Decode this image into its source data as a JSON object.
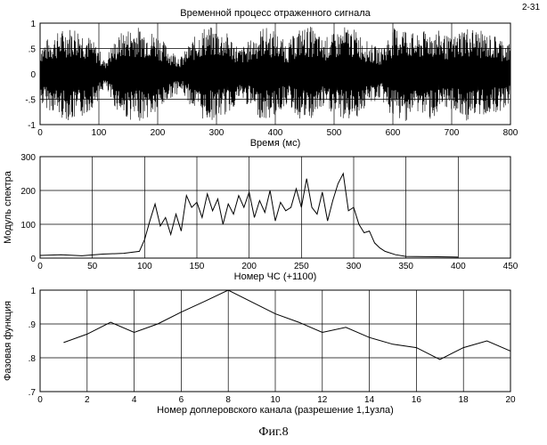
{
  "page_label": "2-31",
  "figure_caption": "Фиг.8",
  "chart_data": [
    {
      "type": "line",
      "title": "Временной процесс отраженного сигнала",
      "xlabel": "Время (мс)",
      "ylabel": "",
      "xlim": [
        0,
        800
      ],
      "ylim": [
        -1,
        1
      ],
      "grid": true,
      "xticks": [
        0,
        100,
        200,
        300,
        400,
        500,
        600,
        700,
        800
      ],
      "yticks": [
        -1,
        -0.5,
        0,
        0.5,
        1
      ],
      "envelope": {
        "t": [
          0,
          20,
          40,
          60,
          80,
          100,
          110,
          120,
          140,
          160,
          180,
          200,
          220,
          240,
          260,
          280,
          300,
          320,
          340,
          360,
          380,
          400,
          420,
          440,
          460,
          480,
          500,
          520,
          540,
          560,
          580,
          600,
          620,
          640,
          660,
          680,
          700,
          720,
          740,
          760,
          780,
          800
        ],
        "amp": [
          0.6,
          0.75,
          0.9,
          0.95,
          0.8,
          0.5,
          0.25,
          0.55,
          0.85,
          0.95,
          0.9,
          0.8,
          0.5,
          0.35,
          0.7,
          0.95,
          0.9,
          0.8,
          0.5,
          0.7,
          0.95,
          0.85,
          0.6,
          0.9,
          0.95,
          0.7,
          0.8,
          0.95,
          0.85,
          0.6,
          0.5,
          0.9,
          0.95,
          0.75,
          0.9,
          0.85,
          0.7,
          0.95,
          0.9,
          0.8,
          0.75,
          0.6
        ]
      }
    },
    {
      "type": "line",
      "title": "",
      "xlabel": "Номер ЧС (+1100)",
      "ylabel": "Модуль спектра",
      "xlim": [
        0,
        450
      ],
      "ylim": [
        0,
        300
      ],
      "grid": true,
      "xticks": [
        0,
        50,
        100,
        150,
        200,
        250,
        300,
        350,
        400,
        450
      ],
      "yticks": [
        0,
        100,
        200,
        300
      ],
      "x": [
        0,
        20,
        40,
        60,
        80,
        95,
        100,
        105,
        110,
        115,
        120,
        125,
        130,
        135,
        140,
        145,
        150,
        155,
        160,
        165,
        170,
        175,
        180,
        185,
        190,
        195,
        200,
        205,
        210,
        215,
        220,
        225,
        230,
        235,
        240,
        245,
        250,
        255,
        260,
        265,
        270,
        275,
        280,
        285,
        290,
        295,
        300,
        305,
        310,
        315,
        320,
        325,
        330,
        340,
        350,
        380,
        400
      ],
      "y": [
        8,
        10,
        7,
        12,
        14,
        20,
        55,
        110,
        160,
        95,
        120,
        70,
        130,
        80,
        185,
        150,
        165,
        120,
        190,
        140,
        175,
        100,
        160,
        130,
        185,
        150,
        195,
        120,
        170,
        135,
        200,
        110,
        165,
        140,
        150,
        205,
        150,
        235,
        150,
        130,
        195,
        110,
        170,
        220,
        250,
        140,
        150,
        100,
        75,
        80,
        45,
        30,
        20,
        10,
        5,
        4,
        3
      ]
    },
    {
      "type": "line",
      "title": "",
      "xlabel": "Номер доплеровского канала (разрешение 1,1узла)",
      "ylabel": "Фазовая функция",
      "xlim": [
        0,
        20
      ],
      "ylim": [
        0.7,
        1
      ],
      "grid": true,
      "xticks": [
        0,
        2,
        4,
        6,
        8,
        10,
        12,
        14,
        16,
        18,
        20
      ],
      "yticks": [
        0.7,
        0.8,
        0.9,
        1
      ],
      "x": [
        1,
        2,
        3,
        4,
        5,
        6,
        7,
        8,
        9,
        10,
        11,
        12,
        13,
        14,
        15,
        16,
        17,
        18,
        19,
        20
      ],
      "y": [
        0.845,
        0.87,
        0.905,
        0.875,
        0.9,
        0.935,
        0.967,
        1.0,
        0.965,
        0.93,
        0.905,
        0.875,
        0.89,
        0.86,
        0.84,
        0.83,
        0.795,
        0.83,
        0.85,
        0.82
      ]
    }
  ]
}
